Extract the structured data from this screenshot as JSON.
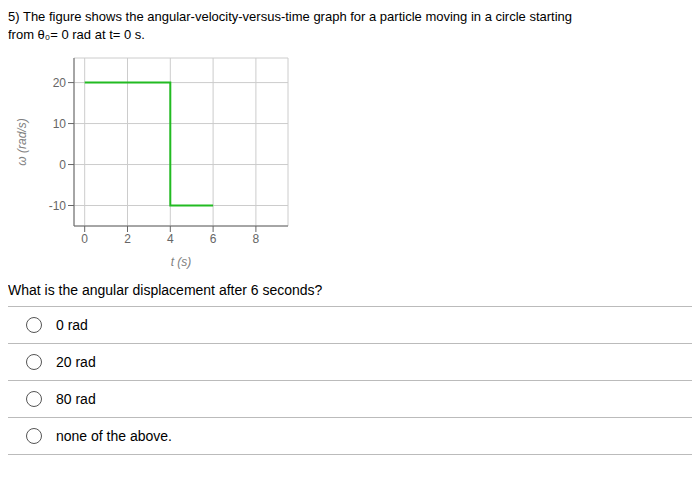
{
  "chart_data": {
    "type": "line",
    "title": "5) The figure shows the angular-velocity-versus-time graph for a particle moving in a circle starting",
    "subtitle": "from θ₀= 0 rad at t= 0 s.",
    "x_label": "t (s)",
    "y_label": "ω (rad/s)",
    "x": [
      0,
      4,
      4,
      6
    ],
    "series": [
      {
        "color": "#22bb22",
        "values": [
          20,
          20,
          -10,
          -10
        ]
      }
    ],
    "xlim": [
      -0.5,
      9.5
    ],
    "xticks": [
      0,
      2,
      4,
      6,
      8
    ],
    "ylim": [
      -15,
      26
    ],
    "yticks": [
      -10,
      0,
      10,
      20
    ],
    "grid": true,
    "annotations": [
      "What is the angular displacement after 6 seconds?",
      "0 rad",
      "20 rad",
      "80 rad",
      "none of the above."
    ]
  }
}
